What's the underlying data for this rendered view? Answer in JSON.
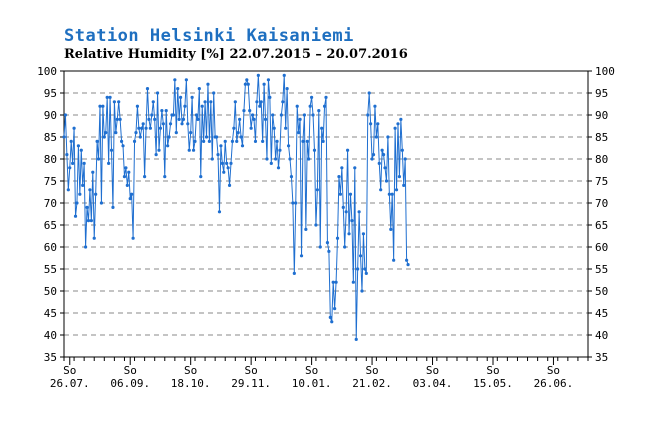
{
  "title": "Station Helsinki Kaisaniemi",
  "subtitle": "Relative Humidity [%] 22.07.2015 – 20.07.2016",
  "chart_data": {
    "type": "line",
    "title": "Station Helsinki Kaisaniemi",
    "subtitle": "Relative Humidity [%] 22.07.2015 – 20.07.2016",
    "xlabel": "",
    "ylabel": "",
    "ylim": [
      35,
      100
    ],
    "yticks": [
      35,
      40,
      45,
      50,
      55,
      60,
      65,
      70,
      75,
      80,
      85,
      90,
      95,
      100
    ],
    "xlim": [
      0,
      364
    ],
    "xticks": [
      {
        "day": 4,
        "weekday": "So",
        "date": "26.07."
      },
      {
        "day": 46,
        "weekday": "So",
        "date": "06.09."
      },
      {
        "day": 88,
        "weekday": "So",
        "date": "18.10."
      },
      {
        "day": 130,
        "weekday": "So",
        "date": "29.11."
      },
      {
        "day": 172,
        "weekday": "So",
        "date": "10.01."
      },
      {
        "day": 214,
        "weekday": "So",
        "date": "21.02."
      },
      {
        "day": 256,
        "weekday": "So",
        "date": "03.04."
      },
      {
        "day": 298,
        "weekday": "So",
        "date": "15.05."
      },
      {
        "day": 340,
        "weekday": "So",
        "date": "26.06."
      }
    ],
    "grid": true,
    "line_color": "#1f6fd0",
    "series": [
      {
        "values": [
          [
            0,
            85
          ],
          [
            1,
            90
          ],
          [
            2,
            81
          ],
          [
            3,
            73
          ],
          [
            4,
            78
          ],
          [
            5,
            84
          ],
          [
            6,
            79
          ],
          [
            7,
            87
          ],
          [
            8,
            67
          ],
          [
            9,
            70
          ],
          [
            10,
            83
          ],
          [
            11,
            72
          ],
          [
            12,
            82
          ],
          [
            13,
            74
          ],
          [
            14,
            79
          ],
          [
            15,
            60
          ],
          [
            16,
            69
          ],
          [
            17,
            66
          ],
          [
            18,
            73
          ],
          [
            19,
            66
          ],
          [
            20,
            77
          ],
          [
            21,
            62
          ],
          [
            22,
            72
          ],
          [
            23,
            84
          ],
          [
            24,
            80
          ],
          [
            25,
            92
          ],
          [
            26,
            70
          ],
          [
            27,
            92
          ],
          [
            28,
            85
          ],
          [
            29,
            86
          ],
          [
            30,
            94
          ],
          [
            31,
            79
          ],
          [
            32,
            94
          ],
          [
            33,
            82
          ],
          [
            34,
            69
          ],
          [
            35,
            93
          ],
          [
            36,
            86
          ],
          [
            37,
            89
          ],
          [
            38,
            93
          ],
          [
            39,
            89
          ],
          [
            40,
            84
          ],
          [
            41,
            83
          ],
          [
            42,
            76
          ],
          [
            43,
            78
          ],
          [
            44,
            74
          ],
          [
            45,
            77
          ],
          [
            46,
            71
          ],
          [
            47,
            72
          ],
          [
            48,
            62
          ],
          [
            49,
            84
          ],
          [
            50,
            86
          ],
          [
            51,
            92
          ],
          [
            52,
            87
          ],
          [
            53,
            85
          ],
          [
            54,
            87
          ],
          [
            55,
            88
          ],
          [
            56,
            76
          ],
          [
            57,
            87
          ],
          [
            58,
            96
          ],
          [
            59,
            89
          ],
          [
            60,
            87
          ],
          [
            61,
            90
          ],
          [
            62,
            93
          ],
          [
            63,
            89
          ],
          [
            64,
            81
          ],
          [
            65,
            95
          ],
          [
            66,
            82
          ],
          [
            67,
            87
          ],
          [
            68,
            91
          ],
          [
            69,
            88
          ],
          [
            70,
            76
          ],
          [
            71,
            91
          ],
          [
            72,
            83
          ],
          [
            73,
            85
          ],
          [
            74,
            88
          ],
          [
            75,
            90
          ],
          [
            76,
            90
          ],
          [
            77,
            98
          ],
          [
            78,
            86
          ],
          [
            79,
            96
          ],
          [
            80,
            89
          ],
          [
            81,
            94
          ],
          [
            82,
            88
          ],
          [
            83,
            89
          ],
          [
            84,
            92
          ],
          [
            85,
            98
          ],
          [
            86,
            88
          ],
          [
            87,
            82
          ],
          [
            88,
            86
          ],
          [
            89,
            94
          ],
          [
            90,
            82
          ],
          [
            91,
            84
          ],
          [
            92,
            90
          ],
          [
            93,
            89
          ],
          [
            94,
            96
          ],
          [
            95,
            76
          ],
          [
            96,
            92
          ],
          [
            97,
            84
          ],
          [
            98,
            93
          ],
          [
            99,
            85
          ],
          [
            100,
            97
          ],
          [
            101,
            84
          ],
          [
            102,
            93
          ],
          [
            103,
            80
          ],
          [
            104,
            95
          ],
          [
            105,
            85
          ],
          [
            106,
            85
          ],
          [
            107,
            81
          ],
          [
            108,
            68
          ],
          [
            109,
            83
          ],
          [
            110,
            79
          ],
          [
            111,
            77
          ],
          [
            112,
            84
          ],
          [
            113,
            79
          ],
          [
            114,
            78
          ],
          [
            115,
            74
          ],
          [
            116,
            79
          ],
          [
            117,
            84
          ],
          [
            118,
            87
          ],
          [
            119,
            93
          ],
          [
            120,
            84
          ],
          [
            121,
            86
          ],
          [
            122,
            89
          ],
          [
            123,
            85
          ],
          [
            124,
            83
          ],
          [
            125,
            91
          ],
          [
            126,
            97
          ],
          [
            127,
            98
          ],
          [
            128,
            97
          ],
          [
            129,
            91
          ],
          [
            130,
            87
          ],
          [
            131,
            90
          ],
          [
            132,
            89
          ],
          [
            133,
            84
          ],
          [
            134,
            93
          ],
          [
            135,
            99
          ],
          [
            136,
            92
          ],
          [
            137,
            93
          ],
          [
            138,
            84
          ],
          [
            139,
            97
          ],
          [
            140,
            89
          ],
          [
            141,
            80
          ],
          [
            142,
            98
          ],
          [
            143,
            94
          ],
          [
            144,
            79
          ],
          [
            145,
            90
          ],
          [
            146,
            87
          ],
          [
            147,
            80
          ],
          [
            148,
            84
          ],
          [
            149,
            78
          ],
          [
            150,
            82
          ],
          [
            151,
            90
          ],
          [
            152,
            93
          ],
          [
            153,
            99
          ],
          [
            154,
            87
          ],
          [
            155,
            96
          ],
          [
            156,
            83
          ],
          [
            157,
            80
          ],
          [
            158,
            76
          ],
          [
            159,
            70
          ],
          [
            160,
            54
          ],
          [
            161,
            70
          ],
          [
            162,
            92
          ],
          [
            163,
            86
          ],
          [
            164,
            89
          ],
          [
            165,
            58
          ],
          [
            166,
            84
          ],
          [
            167,
            90
          ],
          [
            168,
            64
          ],
          [
            169,
            84
          ],
          [
            170,
            80
          ],
          [
            171,
            92
          ],
          [
            172,
            94
          ],
          [
            173,
            90
          ],
          [
            174,
            82
          ],
          [
            175,
            65
          ],
          [
            176,
            73
          ],
          [
            177,
            91
          ],
          [
            178,
            60
          ],
          [
            179,
            87
          ],
          [
            180,
            84
          ],
          [
            181,
            92
          ],
          [
            182,
            94
          ],
          [
            183,
            61
          ],
          [
            184,
            59
          ],
          [
            185,
            44
          ],
          [
            186,
            43
          ],
          [
            187,
            52
          ],
          [
            188,
            46
          ],
          [
            189,
            52
          ],
          [
            190,
            62
          ],
          [
            191,
            76
          ],
          [
            192,
            72
          ],
          [
            193,
            78
          ],
          [
            194,
            69
          ],
          [
            195,
            60
          ],
          [
            196,
            68
          ],
          [
            197,
            82
          ],
          [
            198,
            63
          ],
          [
            199,
            72
          ],
          [
            200,
            66
          ],
          [
            201,
            52
          ],
          [
            202,
            78
          ],
          [
            203,
            39
          ],
          [
            204,
            55
          ],
          [
            205,
            68
          ],
          [
            206,
            58
          ],
          [
            207,
            50
          ],
          [
            208,
            63
          ],
          [
            209,
            55
          ],
          [
            210,
            54
          ],
          [
            211,
            90
          ],
          [
            212,
            95
          ],
          [
            213,
            88
          ],
          [
            214,
            80
          ],
          [
            215,
            81
          ],
          [
            216,
            92
          ],
          [
            217,
            85
          ],
          [
            218,
            88
          ],
          [
            219,
            79
          ],
          [
            220,
            73
          ],
          [
            221,
            82
          ],
          [
            222,
            81
          ],
          [
            223,
            78
          ],
          [
            224,
            75
          ],
          [
            225,
            85
          ],
          [
            226,
            72
          ],
          [
            227,
            64
          ],
          [
            228,
            72
          ],
          [
            229,
            57
          ],
          [
            230,
            87
          ],
          [
            231,
            73
          ],
          [
            232,
            88
          ],
          [
            233,
            76
          ],
          [
            234,
            89
          ],
          [
            235,
            82
          ],
          [
            236,
            74
          ],
          [
            237,
            80
          ],
          [
            238,
            57
          ],
          [
            239,
            56
          ]
        ]
      }
    ]
  }
}
